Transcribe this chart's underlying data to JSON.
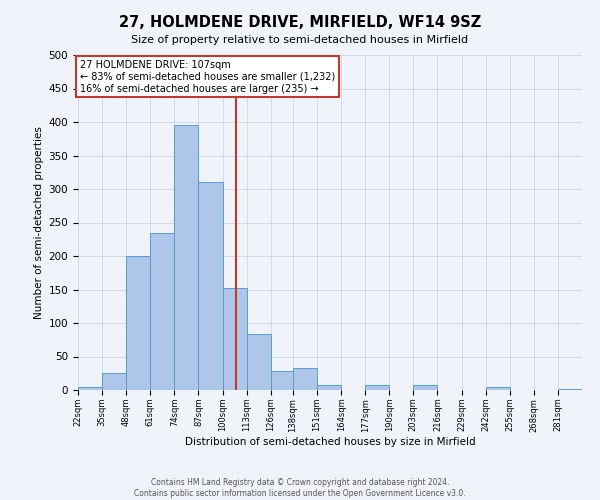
{
  "title": "27, HOLMDENE DRIVE, MIRFIELD, WF14 9SZ",
  "subtitle": "Size of property relative to semi-detached houses in Mirfield",
  "xlabel": "Distribution of semi-detached houses by size in Mirfield",
  "ylabel": "Number of semi-detached properties",
  "bin_labels": [
    "22sqm",
    "35sqm",
    "48sqm",
    "61sqm",
    "74sqm",
    "87sqm",
    "100sqm",
    "113sqm",
    "126sqm",
    "138sqm",
    "151sqm",
    "164sqm",
    "177sqm",
    "190sqm",
    "203sqm",
    "216sqm",
    "229sqm",
    "242sqm",
    "255sqm",
    "268sqm",
    "281sqm"
  ],
  "bin_edges": [
    22,
    35,
    48,
    61,
    74,
    87,
    100,
    113,
    126,
    138,
    151,
    164,
    177,
    190,
    203,
    216,
    229,
    242,
    255,
    268,
    281,
    294
  ],
  "bar_heights": [
    5,
    25,
    200,
    235,
    395,
    310,
    152,
    83,
    28,
    33,
    7,
    0,
    8,
    0,
    7,
    0,
    0,
    5,
    0,
    0,
    2
  ],
  "bar_color": "#aec6e8",
  "bar_edge_color": "#5a9bd5",
  "property_value": 107,
  "marker_line_color": "#c0392b",
  "annotation_box_color": "#ffffff",
  "annotation_border_color": "#c0392b",
  "annotation_text_line1": "27 HOLMDENE DRIVE: 107sqm",
  "annotation_text_line2": "← 83% of semi-detached houses are smaller (1,232)",
  "annotation_text_line3": "16% of semi-detached houses are larger (235) →",
  "ylim": [
    0,
    500
  ],
  "yticks": [
    0,
    50,
    100,
    150,
    200,
    250,
    300,
    350,
    400,
    450,
    500
  ],
  "footer_line1": "Contains HM Land Registry data © Crown copyright and database right 2024.",
  "footer_line2": "Contains public sector information licensed under the Open Government Licence v3.0.",
  "background_color": "#f0f4fa",
  "plot_background_color": "#f0f4fa"
}
